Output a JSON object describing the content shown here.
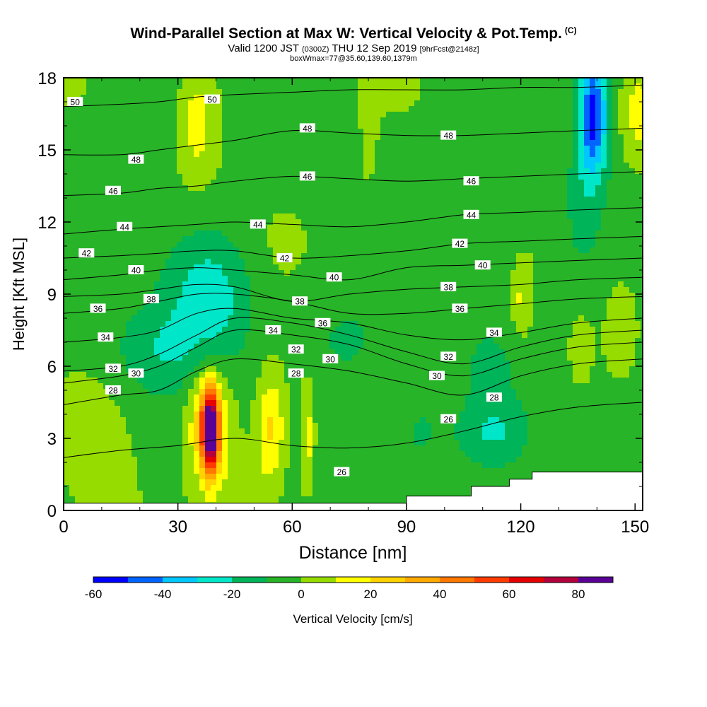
{
  "chart_data": {
    "type": "heatmap",
    "title": "Wind-Parallel Section at Max W: Vertical Velocity & Pot.Temp.",
    "title_mark": "(C)",
    "subtitle_main": "Valid 1200 JST",
    "subtitle_utc": "(0300Z)",
    "subtitle_date": "THU 12 Sep 2019",
    "subtitle_fcst": "[9hrFcst@2148z]",
    "subtitle2": "boxWmax=77@35.60,139.60,1379m",
    "xlabel": "Distance [nm]",
    "ylabel": "Height [Kft MSL]",
    "xlim": [
      0,
      152
    ],
    "ylim": [
      0,
      18
    ],
    "x_ticks": [
      0,
      30,
      60,
      90,
      120,
      150
    ],
    "y_ticks": [
      0,
      3,
      6,
      9,
      12,
      15,
      18
    ],
    "colorbar": {
      "label": "Vertical Velocity [cm/s]",
      "ticks": [
        -60,
        -40,
        -20,
        0,
        20,
        40,
        60,
        80
      ],
      "bounds": [
        -60,
        90
      ],
      "step": 10,
      "colors": [
        "#0000ff",
        "#0064ff",
        "#00c8ff",
        "#00e6c8",
        "#00b45a",
        "#28b428",
        "#96dc00",
        "#ffff00",
        "#ffd200",
        "#ffaa00",
        "#ff7800",
        "#ff3c00",
        "#e60000",
        "#b4003c",
        "#5a0096"
      ]
    },
    "theta_contours": [
      {
        "value": 26,
        "pts": [
          [
            0,
            2.2
          ],
          [
            15,
            2.5
          ],
          [
            30,
            2.7
          ],
          [
            45,
            3.0
          ],
          [
            60,
            2.7
          ],
          [
            75,
            2.6
          ],
          [
            90,
            2.8
          ],
          [
            105,
            3.3
          ],
          [
            120,
            3.9
          ],
          [
            135,
            4.3
          ],
          [
            152,
            4.5
          ]
        ]
      },
      {
        "value": 28,
        "pts": [
          [
            0,
            4.4
          ],
          [
            15,
            4.8
          ],
          [
            25,
            5.0
          ],
          [
            35,
            5.8
          ],
          [
            45,
            6.3
          ],
          [
            60,
            6.1
          ],
          [
            75,
            5.8
          ],
          [
            90,
            5.3
          ],
          [
            105,
            4.8
          ],
          [
            120,
            5.6
          ],
          [
            135,
            6.1
          ],
          [
            152,
            6.3
          ]
        ]
      },
      {
        "value": 30,
        "pts": [
          [
            0,
            5.3
          ],
          [
            15,
            5.6
          ],
          [
            25,
            6.0
          ],
          [
            35,
            6.8
          ],
          [
            45,
            7.5
          ],
          [
            60,
            7.3
          ],
          [
            75,
            6.9
          ],
          [
            90,
            6.1
          ],
          [
            105,
            5.6
          ],
          [
            120,
            6.3
          ],
          [
            135,
            6.8
          ],
          [
            152,
            7.0
          ]
        ]
      },
      {
        "value": 32,
        "pts": [
          [
            0,
            5.8
          ],
          [
            15,
            6.0
          ],
          [
            25,
            6.5
          ],
          [
            35,
            7.3
          ],
          [
            45,
            8.0
          ],
          [
            60,
            7.8
          ],
          [
            75,
            7.3
          ],
          [
            90,
            6.6
          ],
          [
            105,
            6.1
          ],
          [
            120,
            6.8
          ],
          [
            135,
            7.3
          ],
          [
            152,
            7.5
          ]
        ]
      },
      {
        "value": 34,
        "pts": [
          [
            0,
            7.0
          ],
          [
            15,
            7.2
          ],
          [
            25,
            7.5
          ],
          [
            35,
            8.2
          ],
          [
            45,
            8.4
          ],
          [
            60,
            8.0
          ],
          [
            75,
            7.8
          ],
          [
            90,
            7.3
          ],
          [
            105,
            7.1
          ],
          [
            120,
            7.4
          ],
          [
            135,
            7.8
          ],
          [
            152,
            8.0
          ]
        ]
      },
      {
        "value": 36,
        "pts": [
          [
            0,
            8.2
          ],
          [
            15,
            8.4
          ],
          [
            25,
            8.7
          ],
          [
            35,
            9.0
          ],
          [
            45,
            9.0
          ],
          [
            60,
            8.7
          ],
          [
            75,
            8.2
          ],
          [
            90,
            8.2
          ],
          [
            105,
            8.4
          ],
          [
            120,
            8.6
          ],
          [
            135,
            8.8
          ],
          [
            152,
            8.9
          ]
        ]
      },
      {
        "value": 38,
        "pts": [
          [
            0,
            8.9
          ],
          [
            15,
            9.0
          ],
          [
            25,
            9.2
          ],
          [
            35,
            9.4
          ],
          [
            45,
            9.3
          ],
          [
            60,
            8.7
          ],
          [
            75,
            9.0
          ],
          [
            90,
            9.2
          ],
          [
            105,
            9.3
          ],
          [
            120,
            9.4
          ],
          [
            135,
            9.6
          ],
          [
            152,
            9.7
          ]
        ]
      },
      {
        "value": 40,
        "pts": [
          [
            0,
            9.6
          ],
          [
            15,
            9.8
          ],
          [
            25,
            10.0
          ],
          [
            35,
            10.1
          ],
          [
            45,
            10.0
          ],
          [
            60,
            9.8
          ],
          [
            75,
            9.6
          ],
          [
            90,
            10.1
          ],
          [
            105,
            10.2
          ],
          [
            120,
            10.3
          ],
          [
            135,
            10.4
          ],
          [
            152,
            10.5
          ]
        ]
      },
      {
        "value": 42,
        "pts": [
          [
            0,
            10.5
          ],
          [
            15,
            10.6
          ],
          [
            25,
            10.7
          ],
          [
            35,
            10.8
          ],
          [
            45,
            10.8
          ],
          [
            60,
            10.5
          ],
          [
            75,
            10.6
          ],
          [
            90,
            10.8
          ],
          [
            105,
            11.1
          ],
          [
            120,
            11.2
          ],
          [
            135,
            11.3
          ],
          [
            152,
            11.4
          ]
        ]
      },
      {
        "value": 44,
        "pts": [
          [
            0,
            11.5
          ],
          [
            15,
            11.7
          ],
          [
            25,
            11.8
          ],
          [
            35,
            11.9
          ],
          [
            45,
            12.0
          ],
          [
            60,
            11.9
          ],
          [
            75,
            11.8
          ],
          [
            90,
            12.0
          ],
          [
            105,
            12.3
          ],
          [
            120,
            12.4
          ],
          [
            135,
            12.5
          ],
          [
            152,
            12.6
          ]
        ]
      },
      {
        "value": 46,
        "pts": [
          [
            0,
            13.1
          ],
          [
            15,
            13.2
          ],
          [
            25,
            13.4
          ],
          [
            35,
            13.5
          ],
          [
            45,
            13.7
          ],
          [
            60,
            13.9
          ],
          [
            75,
            13.8
          ],
          [
            90,
            13.7
          ],
          [
            105,
            13.8
          ],
          [
            120,
            13.9
          ],
          [
            135,
            14.0
          ],
          [
            152,
            14.1
          ]
        ]
      },
      {
        "value": 48,
        "pts": [
          [
            0,
            14.8
          ],
          [
            15,
            14.8
          ],
          [
            25,
            15.0
          ],
          [
            35,
            15.2
          ],
          [
            45,
            15.4
          ],
          [
            60,
            15.8
          ],
          [
            75,
            15.7
          ],
          [
            90,
            15.6
          ],
          [
            105,
            15.6
          ],
          [
            120,
            15.7
          ],
          [
            135,
            15.8
          ],
          [
            152,
            15.9
          ]
        ]
      },
      {
        "value": 50,
        "pts": [
          [
            0,
            16.8
          ],
          [
            15,
            16.9
          ],
          [
            25,
            17.0
          ],
          [
            35,
            17.2
          ],
          [
            45,
            17.3
          ],
          [
            60,
            17.4
          ],
          [
            75,
            17.5
          ],
          [
            90,
            17.5
          ],
          [
            105,
            17.5
          ],
          [
            120,
            17.6
          ],
          [
            135,
            17.6
          ],
          [
            152,
            17.7
          ]
        ]
      }
    ],
    "contour_labels": [
      {
        "text": "50",
        "x": 3,
        "y": 17.0
      },
      {
        "text": "50",
        "x": 39,
        "y": 17.1
      },
      {
        "text": "48",
        "x": 19,
        "y": 14.6
      },
      {
        "text": "48",
        "x": 64,
        "y": 15.9
      },
      {
        "text": "48",
        "x": 101,
        "y": 15.6
      },
      {
        "text": "46",
        "x": 13,
        "y": 13.3
      },
      {
        "text": "46",
        "x": 64,
        "y": 13.9
      },
      {
        "text": "46",
        "x": 107,
        "y": 13.7
      },
      {
        "text": "44",
        "x": 16,
        "y": 11.8
      },
      {
        "text": "44",
        "x": 51,
        "y": 11.9
      },
      {
        "text": "44",
        "x": 107,
        "y": 12.3
      },
      {
        "text": "42",
        "x": 6,
        "y": 10.7
      },
      {
        "text": "42",
        "x": 58,
        "y": 10.5
      },
      {
        "text": "42",
        "x": 104,
        "y": 11.1
      },
      {
        "text": "40",
        "x": 19,
        "y": 10.0
      },
      {
        "text": "40",
        "x": 71,
        "y": 9.7
      },
      {
        "text": "40",
        "x": 110,
        "y": 10.2
      },
      {
        "text": "38",
        "x": 23,
        "y": 8.8
      },
      {
        "text": "38",
        "x": 62,
        "y": 8.7
      },
      {
        "text": "38",
        "x": 101,
        "y": 9.3
      },
      {
        "text": "36",
        "x": 9,
        "y": 8.4
      },
      {
        "text": "36",
        "x": 68,
        "y": 7.8
      },
      {
        "text": "36",
        "x": 104,
        "y": 8.4
      },
      {
        "text": "34",
        "x": 11,
        "y": 7.2
      },
      {
        "text": "34",
        "x": 55,
        "y": 7.5
      },
      {
        "text": "34",
        "x": 113,
        "y": 7.4
      },
      {
        "text": "32",
        "x": 13,
        "y": 5.9
      },
      {
        "text": "32",
        "x": 61,
        "y": 6.7
      },
      {
        "text": "32",
        "x": 101,
        "y": 6.4
      },
      {
        "text": "30",
        "x": 19,
        "y": 5.7
      },
      {
        "text": "30",
        "x": 70,
        "y": 6.3
      },
      {
        "text": "30",
        "x": 98,
        "y": 5.6
      },
      {
        "text": "28",
        "x": 13,
        "y": 5.0
      },
      {
        "text": "28",
        "x": 61,
        "y": 5.7
      },
      {
        "text": "28",
        "x": 113,
        "y": 4.7
      },
      {
        "text": "26",
        "x": 101,
        "y": 3.8
      },
      {
        "text": "26",
        "x": 73,
        "y": 1.6
      }
    ],
    "terrain": [
      [
        0,
        0.3
      ],
      [
        90,
        0.3
      ],
      [
        90,
        0.6
      ],
      [
        107,
        0.6
      ],
      [
        107,
        1.0
      ],
      [
        117,
        1.0
      ],
      [
        117,
        1.3
      ],
      [
        123,
        1.3
      ],
      [
        123,
        1.6
      ],
      [
        152,
        1.6
      ]
    ]
  }
}
